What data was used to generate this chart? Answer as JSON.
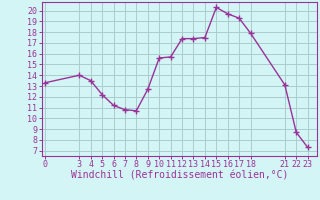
{
  "x": [
    0,
    3,
    4,
    5,
    6,
    7,
    8,
    9,
    10,
    11,
    12,
    13,
    14,
    15,
    16,
    17,
    18,
    21,
    22,
    23
  ],
  "y": [
    13.3,
    14.0,
    13.5,
    12.2,
    11.2,
    10.8,
    10.7,
    12.7,
    15.6,
    15.7,
    17.4,
    17.4,
    17.5,
    20.3,
    19.7,
    19.3,
    17.9,
    13.1,
    8.7,
    7.3
  ],
  "xticks": [
    0,
    3,
    4,
    5,
    6,
    7,
    8,
    9,
    10,
    11,
    12,
    13,
    14,
    15,
    16,
    17,
    18,
    21,
    22,
    23
  ],
  "yticks": [
    7,
    8,
    9,
    10,
    11,
    12,
    13,
    14,
    15,
    16,
    17,
    18,
    19,
    20
  ],
  "ylim": [
    6.5,
    20.8
  ],
  "xlim": [
    -0.3,
    23.8
  ],
  "line_color": "#993399",
  "marker": "+",
  "marker_size": 4,
  "linewidth": 1.0,
  "xlabel": "Windchill (Refroidissement éolien,°C)",
  "xlabel_fontsize": 7.0,
  "tick_fontsize": 6.0,
  "bg_color": "#d4f5f5",
  "grid_color": "#aacccc",
  "spine_color": "#993399",
  "axis_label_color": "#993399",
  "tick_color": "#993399"
}
